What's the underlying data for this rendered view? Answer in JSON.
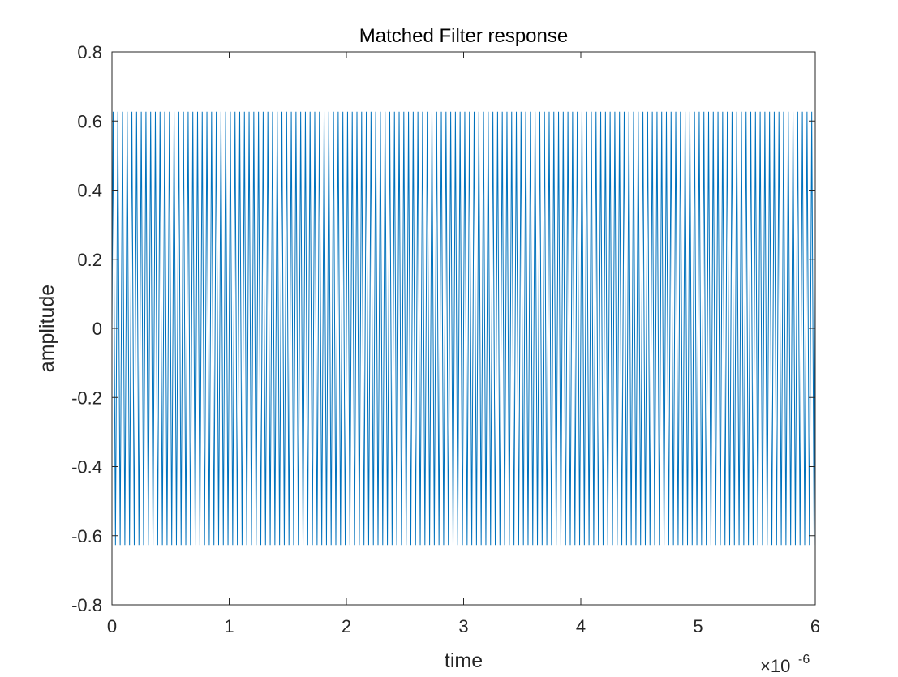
{
  "chart_data": {
    "type": "line",
    "title": "Matched Filter response",
    "xlabel": "time",
    "ylabel": "amplitude",
    "xlim": [
      0,
      6e-06
    ],
    "ylim": [
      -0.8,
      0.8
    ],
    "x_exponent_label": {
      "base": "×10",
      "exponent": "-6"
    },
    "x_ticks": [
      0,
      1e-06,
      2e-06,
      3e-06,
      4e-06,
      5e-06,
      6e-06
    ],
    "x_tick_labels": [
      "0",
      "1",
      "2",
      "3",
      "4",
      "5",
      "6"
    ],
    "y_ticks": [
      -0.8,
      -0.6,
      -0.4,
      -0.2,
      0,
      0.2,
      0.4,
      0.6,
      0.8
    ],
    "y_tick_labels": [
      "-0.8",
      "-0.6",
      "-0.4",
      "-0.2",
      "0",
      "0.2",
      "0.4",
      "0.6",
      "0.8"
    ],
    "grid": false,
    "series": [
      {
        "color": "#0072BD",
        "kind": "oscillation",
        "amplitude": 0.627,
        "x_start": 0,
        "x_end": 6e-06,
        "cycles": 150,
        "end_value": 0.14
      }
    ]
  }
}
